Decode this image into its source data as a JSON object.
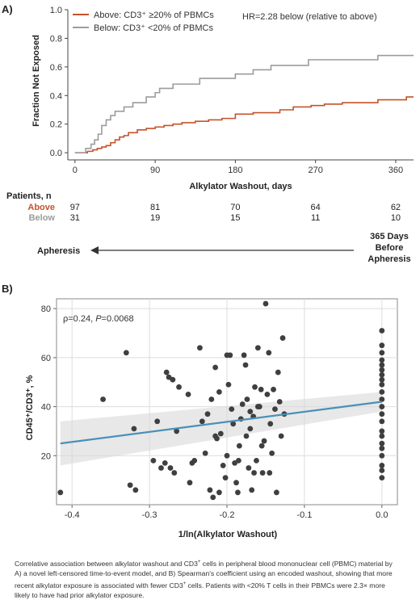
{
  "chart_data": [
    {
      "type": "line",
      "panel_label": "A)",
      "xlabel": "Alkylator Washout, days",
      "ylabel": "Fraction Not Exposed",
      "xlim": [
        -8,
        380
      ],
      "ylim": [
        -0.05,
        1.0
      ],
      "xticks": [
        0,
        90,
        180,
        270,
        360
      ],
      "yticks": [
        0.0,
        0.2,
        0.4,
        0.6,
        0.8,
        1.0
      ],
      "yticklabels": [
        "0.0",
        "0.2",
        "0.4",
        "0.6",
        "0.8",
        "1.0"
      ],
      "annotation": "HR=2.28 below (relative to above)",
      "series": [
        {
          "name": "Above: CD3⁺ ≥20% of PBMCs",
          "color": "#c4532a",
          "x": [
            0,
            14,
            20,
            25,
            30,
            35,
            40,
            45,
            50,
            55,
            60,
            70,
            80,
            90,
            100,
            110,
            120,
            135,
            150,
            165,
            180,
            200,
            215,
            230,
            245,
            265,
            280,
            300,
            320,
            340,
            350,
            360,
            365,
            372,
            380
          ],
          "y": [
            0,
            0.01,
            0.02,
            0.03,
            0.04,
            0.05,
            0.07,
            0.09,
            0.11,
            0.12,
            0.14,
            0.16,
            0.17,
            0.18,
            0.19,
            0.2,
            0.21,
            0.22,
            0.23,
            0.24,
            0.27,
            0.28,
            0.28,
            0.3,
            0.32,
            0.33,
            0.34,
            0.35,
            0.35,
            0.37,
            0.37,
            0.37,
            0.37,
            0.39,
            0.39
          ]
        },
        {
          "name": "Below: CD3⁺ <20% of PBMCs",
          "color": "#9c9c9c",
          "x": [
            0,
            12,
            18,
            22,
            26,
            30,
            35,
            40,
            45,
            55,
            65,
            80,
            90,
            95,
            110,
            140,
            180,
            200,
            220,
            240,
            262,
            300,
            330,
            340,
            380
          ],
          "y": [
            0,
            0.03,
            0.06,
            0.09,
            0.13,
            0.19,
            0.23,
            0.26,
            0.29,
            0.32,
            0.35,
            0.39,
            0.42,
            0.45,
            0.48,
            0.52,
            0.55,
            0.58,
            0.61,
            0.61,
            0.65,
            0.65,
            0.65,
            0.68,
            0.68
          ]
        }
      ],
      "risk_table": {
        "title": "Patients, n",
        "rows": [
          {
            "label": "Above",
            "color": "#c4532a",
            "values": [
              97,
              81,
              70,
              64,
              62
            ]
          },
          {
            "label": "Below",
            "color": "#9c9c9c",
            "values": [
              31,
              19,
              15,
              11,
              10
            ]
          }
        ]
      },
      "arrow": {
        "left_label": "Apheresis",
        "right_label": [
          "365 Days",
          "Before",
          "Apheresis"
        ]
      }
    },
    {
      "type": "scatter",
      "panel_label": "B)",
      "xlabel": "1/ln(Alkylator Washout)",
      "ylabel": "CD45⁺/CD3⁺, %",
      "xlim": [
        -0.42,
        0.02
      ],
      "ylim": [
        0,
        84
      ],
      "xticks": [
        -0.4,
        -0.3,
        -0.2,
        -0.1,
        0.0
      ],
      "xticklabels": [
        "-0.4",
        "-0.3",
        "-0.2",
        "-0.1",
        "0.0"
      ],
      "yticks": [
        20,
        40,
        60,
        80
      ],
      "annotation_prefix": "ρ=0.24, ",
      "annotation_p": "P",
      "annotation_suffix": "=0.0068",
      "fit_line": {
        "x": [
          -0.415,
          0.0
        ],
        "y": [
          25,
          42
        ],
        "ci_low": [
          16,
          38
        ],
        "ci_high": [
          34,
          46
        ],
        "color": "#4a90b8"
      },
      "points": [
        [
          -0.415,
          5
        ],
        [
          -0.36,
          43
        ],
        [
          -0.33,
          62
        ],
        [
          -0.325,
          8
        ],
        [
          -0.32,
          31
        ],
        [
          -0.318,
          6
        ],
        [
          -0.295,
          18
        ],
        [
          -0.29,
          34
        ],
        [
          -0.285,
          15
        ],
        [
          -0.28,
          17
        ],
        [
          -0.278,
          54
        ],
        [
          -0.275,
          52
        ],
        [
          -0.273,
          15
        ],
        [
          -0.27,
          51
        ],
        [
          -0.268,
          13
        ],
        [
          -0.265,
          30
        ],
        [
          -0.262,
          48
        ],
        [
          -0.25,
          45
        ],
        [
          -0.248,
          9
        ],
        [
          -0.245,
          17
        ],
        [
          -0.242,
          18
        ],
        [
          -0.235,
          64
        ],
        [
          -0.232,
          34
        ],
        [
          -0.228,
          21
        ],
        [
          -0.225,
          37
        ],
        [
          -0.222,
          6
        ],
        [
          -0.22,
          43
        ],
        [
          -0.218,
          3
        ],
        [
          -0.215,
          56
        ],
        [
          -0.213,
          27
        ],
        [
          -0.21,
          5
        ],
        [
          -0.208,
          29
        ],
        [
          -0.205,
          16
        ],
        [
          -0.202,
          11
        ],
        [
          -0.2,
          20
        ],
        [
          -0.198,
          49
        ],
        [
          -0.196,
          61
        ],
        [
          -0.194,
          39
        ],
        [
          -0.192,
          33
        ],
        [
          -0.19,
          17
        ],
        [
          -0.188,
          9
        ],
        [
          -0.186,
          5
        ],
        [
          -0.184,
          24
        ],
        [
          -0.182,
          35
        ],
        [
          -0.18,
          41
        ],
        [
          -0.178,
          61
        ],
        [
          -0.176,
          57
        ],
        [
          -0.174,
          43
        ],
        [
          -0.172,
          15
        ],
        [
          -0.17,
          31
        ],
        [
          -0.168,
          6
        ],
        [
          -0.166,
          36
        ],
        [
          -0.164,
          48
        ],
        [
          -0.162,
          18
        ],
        [
          -0.16,
          64
        ],
        [
          -0.158,
          40
        ],
        [
          -0.156,
          47
        ],
        [
          -0.154,
          13
        ],
        [
          -0.152,
          26
        ],
        [
          -0.15,
          82
        ],
        [
          -0.148,
          45
        ],
        [
          -0.146,
          62
        ],
        [
          -0.144,
          33
        ],
        [
          -0.142,
          21
        ],
        [
          -0.14,
          47
        ],
        [
          -0.138,
          39
        ],
        [
          -0.136,
          5
        ],
        [
          -0.134,
          54
        ],
        [
          -0.132,
          42
        ],
        [
          -0.13,
          28
        ],
        [
          -0.128,
          68
        ],
        [
          -0.126,
          37
        ],
        [
          -0.175,
          28
        ],
        [
          -0.165,
          13
        ],
        [
          -0.155,
          24
        ],
        [
          -0.2,
          61
        ],
        [
          -0.21,
          46
        ],
        [
          -0.185,
          18
        ],
        [
          -0.17,
          38
        ],
        [
          -0.145,
          13
        ],
        [
          -0.16,
          40
        ],
        [
          -0.215,
          28
        ],
        [
          0,
          71
        ],
        [
          0,
          65
        ],
        [
          0,
          62
        ],
        [
          0,
          59
        ],
        [
          0,
          57
        ],
        [
          0,
          55
        ],
        [
          0,
          53
        ],
        [
          0,
          51
        ],
        [
          0,
          49
        ],
        [
          0,
          46
        ],
        [
          0,
          43
        ],
        [
          0,
          40
        ],
        [
          0,
          37
        ],
        [
          0,
          34
        ],
        [
          0,
          30
        ],
        [
          0,
          28
        ],
        [
          0,
          25
        ],
        [
          0,
          23
        ],
        [
          0,
          20
        ],
        [
          0,
          16
        ],
        [
          0,
          14
        ],
        [
          0,
          11
        ]
      ]
    }
  ],
  "caption": {
    "line1": "Correlative association between alkylator washout and CD3",
    "sup1": "+",
    "line1b": " cells in peripheral blood mononuclear cell (PBMC) material by",
    "line2": "A) a novel left-censored time-to-event model, and B) Spearman's coefficient using an encoded washout, showing that more",
    "line3a": "recent alkylator exposure is associated with fewer CD3",
    "sup2": "+",
    "line3b": " cells. Patients with <20% T cells in their PBMCs were 2.3× more",
    "line4": "likely to have had prior alkylator exposure."
  }
}
